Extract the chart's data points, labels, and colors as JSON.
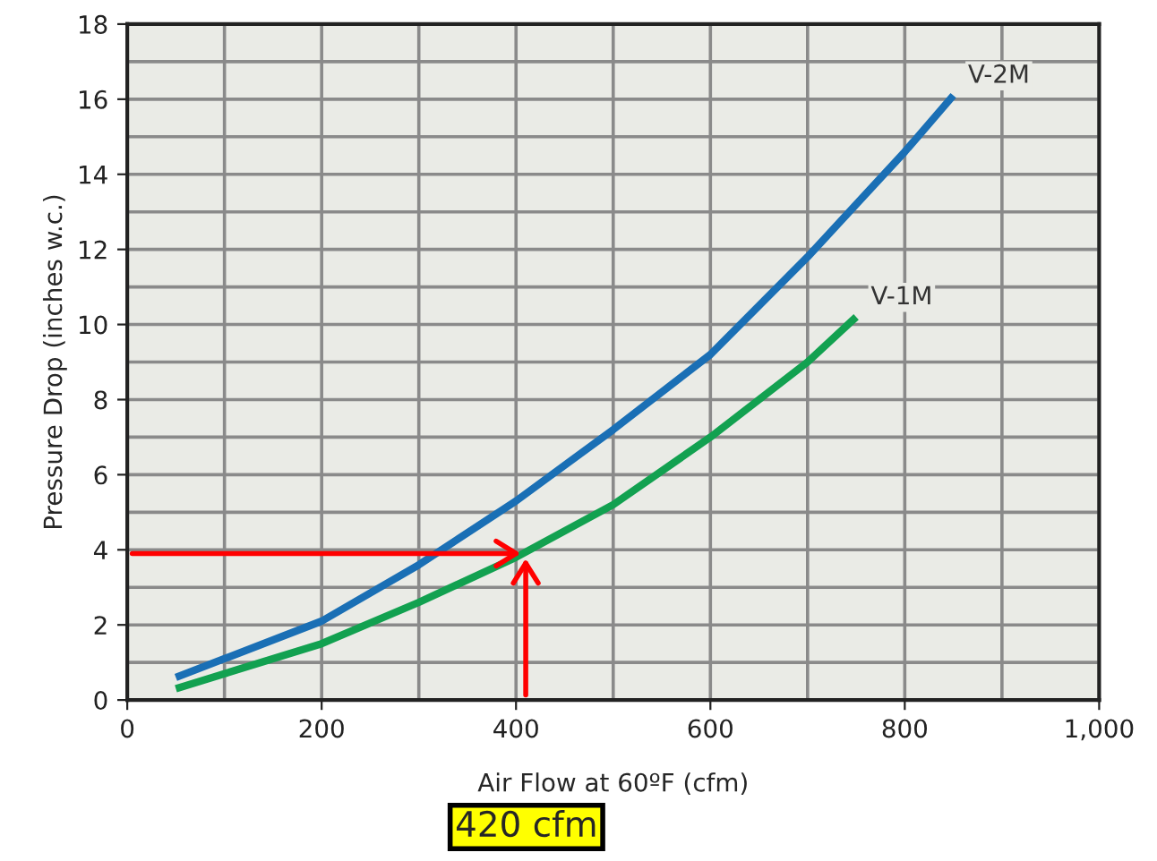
{
  "chart_data": {
    "type": "line",
    "xlabel": "Air Flow at 60ºF (cfm)",
    "ylabel": "Pressure Drop (inches w.c.)",
    "xlim": [
      0,
      1000
    ],
    "xticks": [
      0,
      200,
      400,
      600,
      800,
      {
        "value": 1000,
        "label": "1,000"
      }
    ],
    "ylim": [
      0,
      18
    ],
    "yticks": [
      0,
      2,
      4,
      6,
      8,
      10,
      12,
      14,
      16,
      18
    ],
    "grid": true,
    "legend": false,
    "marker": "none",
    "line_style": "solid",
    "series": [
      {
        "name": "V-2M",
        "color": "#1a6fb5",
        "x": [
          50,
          100,
          200,
          300,
          400,
          500,
          600,
          700,
          800,
          850
        ],
        "values": [
          0.6,
          1.1,
          2.1,
          3.6,
          5.3,
          7.2,
          9.2,
          11.8,
          14.6,
          16.1
        ]
      },
      {
        "name": "V-1M",
        "color": "#12a150",
        "x": [
          50,
          100,
          200,
          300,
          400,
          500,
          600,
          700,
          750
        ],
        "values": [
          0.3,
          0.7,
          1.5,
          2.6,
          3.8,
          5.2,
          7.0,
          9.0,
          10.2
        ]
      }
    ],
    "annotations": [
      "420 cfm"
    ]
  }
}
